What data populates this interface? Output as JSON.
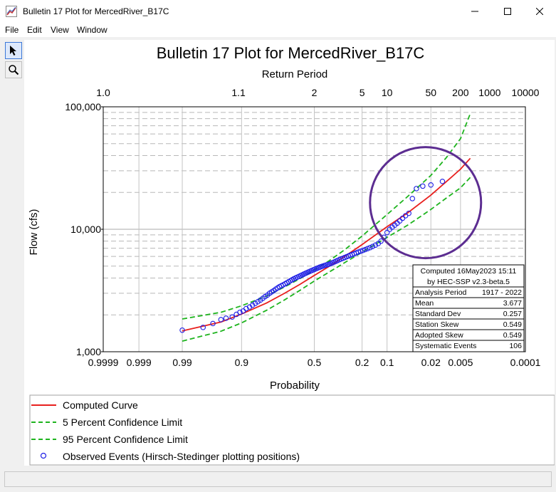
{
  "window": {
    "title": "Bulletin 17 Plot for MercedRiver_B17C"
  },
  "menu": [
    "File",
    "Edit",
    "View",
    "Window"
  ],
  "icons": {
    "pointer": "pointer-arrow-icon",
    "zoom": "magnifier-icon",
    "app": "chart-app-icon"
  },
  "chart_data": {
    "type": "scatter",
    "title": "Bulletin 17 Plot for MercedRiver_B17C",
    "xlabel": "Probability",
    "ylabel": "Flow (cfs)",
    "top_axis_label": "Return Period",
    "x_scale": "normal-probability (exceedance)",
    "y_scale": "log",
    "ylim": [
      1000,
      100000
    ],
    "xlim": [
      0.9999,
      0.0001
    ],
    "x_ticks": [
      {
        "p": 0.9999,
        "label": "0.9999"
      },
      {
        "p": 0.999,
        "label": "0.999"
      },
      {
        "p": 0.99,
        "label": "0.99"
      },
      {
        "p": 0.9,
        "label": "0.9"
      },
      {
        "p": 0.5,
        "label": "0.5"
      },
      {
        "p": 0.2,
        "label": "0.2"
      },
      {
        "p": 0.1,
        "label": "0.1"
      },
      {
        "p": 0.02,
        "label": "0.02"
      },
      {
        "p": 0.005,
        "label": "0.005"
      },
      {
        "p": 0.0001,
        "label": "0.0001"
      }
    ],
    "top_ticks": [
      {
        "T": 1.0,
        "label": "1.0"
      },
      {
        "T": 1.1,
        "label": "1.1"
      },
      {
        "T": 2,
        "label": "2"
      },
      {
        "T": 5,
        "label": "5"
      },
      {
        "T": 10,
        "label": "10"
      },
      {
        "T": 50,
        "label": "50"
      },
      {
        "T": 200,
        "label": "200"
      },
      {
        "T": 1000,
        "label": "1000"
      },
      {
        "T": 10000,
        "label": "10000"
      }
    ],
    "y_ticks": [
      {
        "v": 1000,
        "label": "1,000"
      },
      {
        "v": 10000,
        "label": "10,000"
      },
      {
        "v": 100000,
        "label": "100,000"
      }
    ],
    "series": [
      {
        "name": "Computed Curve",
        "color": "#e8201e",
        "style": "solid",
        "points": [
          [
            0.99,
            1480
          ],
          [
            0.95,
            1750
          ],
          [
            0.9,
            2030
          ],
          [
            0.8,
            2500
          ],
          [
            0.7,
            3000
          ],
          [
            0.6,
            3550
          ],
          [
            0.5,
            4200
          ],
          [
            0.4,
            4950
          ],
          [
            0.3,
            5950
          ],
          [
            0.2,
            7500
          ],
          [
            0.1,
            10500
          ],
          [
            0.05,
            13600
          ],
          [
            0.02,
            19000
          ],
          [
            0.01,
            24500
          ],
          [
            0.005,
            31000
          ],
          [
            0.003,
            38000
          ]
        ]
      },
      {
        "name": "5 Percent Confidence Limit",
        "color": "#1eb41e",
        "style": "dashed",
        "points": [
          [
            0.99,
            1850
          ],
          [
            0.95,
            2100
          ],
          [
            0.9,
            2370
          ],
          [
            0.8,
            2850
          ],
          [
            0.7,
            3380
          ],
          [
            0.6,
            3950
          ],
          [
            0.5,
            4650
          ],
          [
            0.4,
            5500
          ],
          [
            0.3,
            6750
          ],
          [
            0.2,
            8800
          ],
          [
            0.1,
            13200
          ],
          [
            0.05,
            18500
          ],
          [
            0.02,
            27500
          ],
          [
            0.01,
            38500
          ],
          [
            0.005,
            55000
          ],
          [
            0.003,
            88000
          ]
        ]
      },
      {
        "name": "95 Percent Confidence Limit",
        "color": "#1eb41e",
        "style": "dashed",
        "points": [
          [
            0.99,
            1220
          ],
          [
            0.95,
            1470
          ],
          [
            0.9,
            1720
          ],
          [
            0.8,
            2180
          ],
          [
            0.7,
            2650
          ],
          [
            0.6,
            3170
          ],
          [
            0.5,
            3780
          ],
          [
            0.4,
            4450
          ],
          [
            0.3,
            5300
          ],
          [
            0.2,
            6500
          ],
          [
            0.1,
            8600
          ],
          [
            0.05,
            10800
          ],
          [
            0.02,
            14500
          ],
          [
            0.01,
            18000
          ],
          [
            0.005,
            21800
          ],
          [
            0.003,
            26500
          ]
        ]
      },
      {
        "name": "Observed Events (Hirsch-Stedinger plotting positions)",
        "color": "#1e1ee6",
        "style": "circles",
        "points": [
          [
            0.99,
            1500
          ],
          [
            0.975,
            1580
          ],
          [
            0.963,
            1700
          ],
          [
            0.95,
            1830
          ],
          [
            0.94,
            1880
          ],
          [
            0.926,
            1920
          ],
          [
            0.915,
            2020
          ],
          [
            0.905,
            2100
          ],
          [
            0.895,
            2150
          ],
          [
            0.885,
            2250
          ],
          [
            0.873,
            2320
          ],
          [
            0.862,
            2400
          ],
          [
            0.851,
            2480
          ],
          [
            0.84,
            2560
          ],
          [
            0.829,
            2640
          ],
          [
            0.818,
            2730
          ],
          [
            0.807,
            2820
          ],
          [
            0.796,
            2900
          ],
          [
            0.785,
            3000
          ],
          [
            0.774,
            3080
          ],
          [
            0.763,
            3150
          ],
          [
            0.752,
            3240
          ],
          [
            0.741,
            3320
          ],
          [
            0.73,
            3400
          ],
          [
            0.719,
            3460
          ],
          [
            0.708,
            3520
          ],
          [
            0.696,
            3590
          ],
          [
            0.685,
            3660
          ],
          [
            0.674,
            3730
          ],
          [
            0.663,
            3800
          ],
          [
            0.652,
            3870
          ],
          [
            0.641,
            3940
          ],
          [
            0.63,
            4000
          ],
          [
            0.619,
            4060
          ],
          [
            0.607,
            4120
          ],
          [
            0.596,
            4180
          ],
          [
            0.585,
            4240
          ],
          [
            0.574,
            4300
          ],
          [
            0.563,
            4360
          ],
          [
            0.552,
            4420
          ],
          [
            0.541,
            4480
          ],
          [
            0.53,
            4540
          ],
          [
            0.519,
            4600
          ],
          [
            0.507,
            4660
          ],
          [
            0.496,
            4720
          ],
          [
            0.485,
            4780
          ],
          [
            0.474,
            4840
          ],
          [
            0.463,
            4900
          ],
          [
            0.452,
            4950
          ],
          [
            0.441,
            5000
          ],
          [
            0.43,
            5050
          ],
          [
            0.419,
            5100
          ],
          [
            0.407,
            5150
          ],
          [
            0.396,
            5200
          ],
          [
            0.385,
            5260
          ],
          [
            0.374,
            5330
          ],
          [
            0.363,
            5400
          ],
          [
            0.352,
            5480
          ],
          [
            0.341,
            5560
          ],
          [
            0.33,
            5640
          ],
          [
            0.319,
            5720
          ],
          [
            0.307,
            5800
          ],
          [
            0.296,
            5880
          ],
          [
            0.285,
            5960
          ],
          [
            0.274,
            6050
          ],
          [
            0.263,
            6140
          ],
          [
            0.252,
            6230
          ],
          [
            0.241,
            6320
          ],
          [
            0.23,
            6420
          ],
          [
            0.219,
            6520
          ],
          [
            0.207,
            6620
          ],
          [
            0.196,
            6720
          ],
          [
            0.185,
            6830
          ],
          [
            0.174,
            6950
          ],
          [
            0.163,
            7080
          ],
          [
            0.152,
            7240
          ],
          [
            0.141,
            7420
          ],
          [
            0.13,
            7650
          ],
          [
            0.12,
            8000
          ],
          [
            0.11,
            8600
          ],
          [
            0.1,
            9400
          ],
          [
            0.092,
            10000
          ],
          [
            0.085,
            10400
          ],
          [
            0.078,
            10800
          ],
          [
            0.072,
            11200
          ],
          [
            0.066,
            11700
          ],
          [
            0.06,
            12300
          ],
          [
            0.054,
            12900
          ],
          [
            0.048,
            13500
          ],
          [
            0.042,
            17800
          ],
          [
            0.036,
            21500
          ],
          [
            0.028,
            22500
          ],
          [
            0.02,
            23000
          ],
          [
            0.012,
            24600
          ]
        ]
      }
    ],
    "annotation": {
      "shape": "circle",
      "color": "#5c2d91",
      "center": [
        0.025,
        16500
      ]
    },
    "stats_box": {
      "header_line1": "Computed 16May2023 15:11",
      "header_line2": "by HEC-SSP v2.3-beta.5",
      "rows": [
        {
          "label": "Analysis Period",
          "value": "1917 - 2022"
        },
        {
          "label": "Mean",
          "value": "3.677"
        },
        {
          "label": "Standard Dev",
          "value": "0.257"
        },
        {
          "label": "Station Skew",
          "value": "0.549"
        },
        {
          "label": "Adopted Skew",
          "value": "0.549"
        },
        {
          "label": "Systematic Events",
          "value": "106"
        }
      ]
    },
    "legend_position": "bottom",
    "grid": true
  }
}
